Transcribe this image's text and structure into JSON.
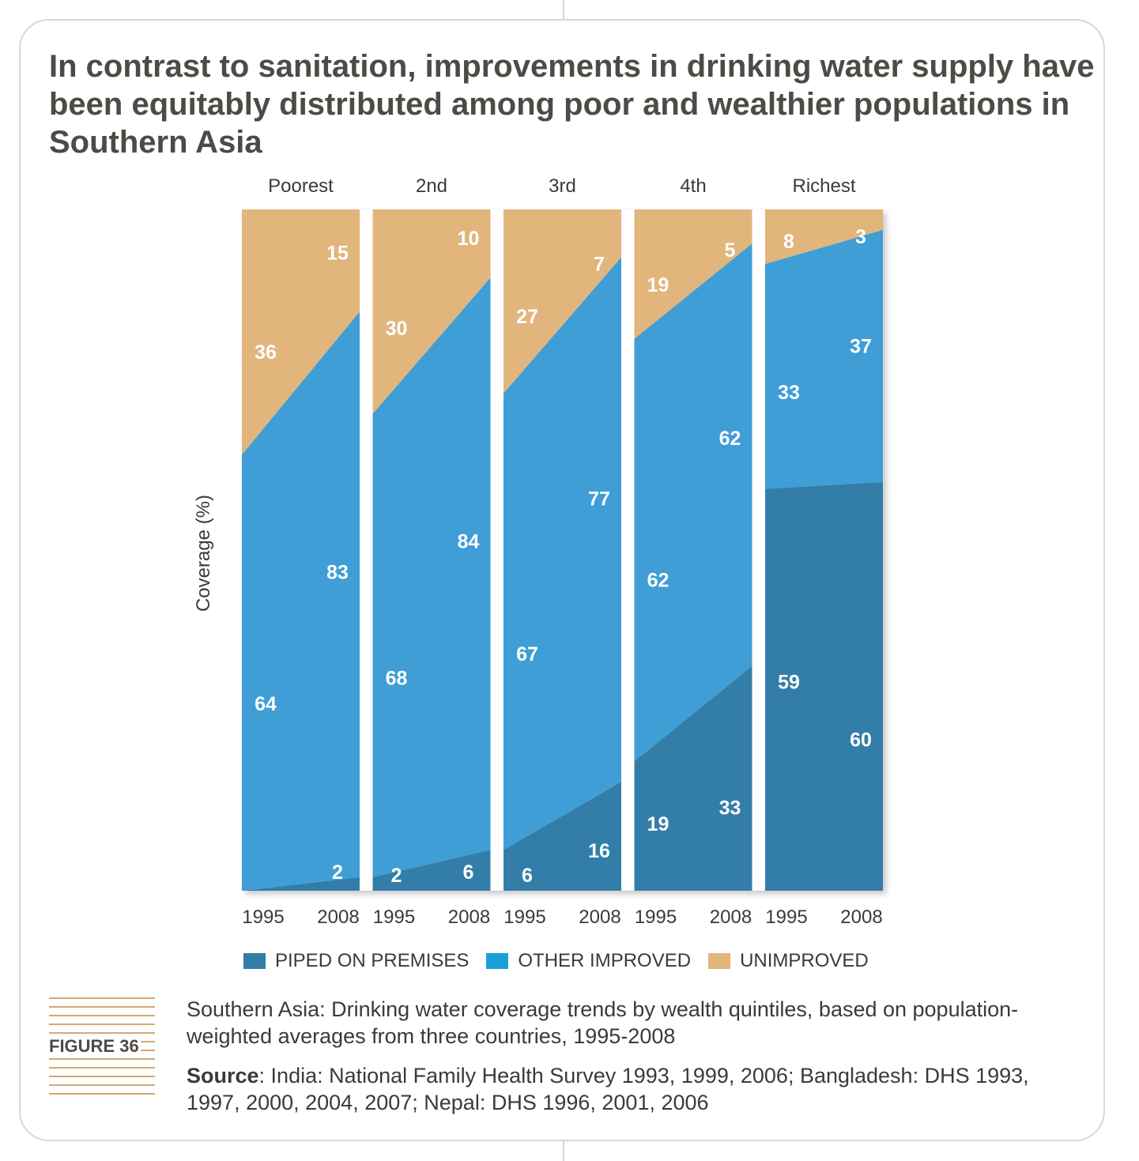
{
  "title": "In contrast to sanitation, improvements in drinking water supply have been equitably distributed among poor and wealthier populations in Southern Asia",
  "figure_label": "FIGURE 36",
  "caption": "Southern Asia: Drinking water coverage trends by wealth quintiles, based on population-weighted averages from three countries, 1995-2008",
  "source_label": "Source",
  "source_text": ": India: National Family Health Survey 1993, 1999, 2006; Bangladesh: DHS 1993, 1997, 2000, 2004, 2007; Nepal: DHS 1996, 2001, 2006",
  "colors": {
    "piped": "#337ea8",
    "other": "#3e9ed5",
    "unimproved": "#e2b57c",
    "legend_other": "#1aa0d8",
    "label_text": "#ffffff",
    "title_text": "#4e4a45"
  },
  "chart_data": {
    "type": "area",
    "ylabel": "Coverage (%)",
    "ylim": [
      0,
      100
    ],
    "x": [
      "1995",
      "2008"
    ],
    "grid": false,
    "legend_position": "bottom",
    "legend": [
      "PIPED ON PREMISES",
      "OTHER IMPROVED",
      "UNIMPROVED"
    ],
    "panels": [
      {
        "name": "Poorest",
        "piped": [
          0,
          2
        ],
        "other": [
          64,
          83
        ],
        "unimproved": [
          36,
          15
        ]
      },
      {
        "name": "2nd",
        "piped": [
          2,
          6
        ],
        "other": [
          68,
          84
        ],
        "unimproved": [
          30,
          10
        ]
      },
      {
        "name": "3rd",
        "piped": [
          6,
          16
        ],
        "other": [
          67,
          77
        ],
        "unimproved": [
          27,
          7
        ]
      },
      {
        "name": "4th",
        "piped": [
          19,
          33
        ],
        "other": [
          62,
          62
        ],
        "unimproved": [
          19,
          5
        ]
      },
      {
        "name": "Richest",
        "piped": [
          59,
          60
        ],
        "other": [
          33,
          37
        ],
        "unimproved": [
          8,
          3
        ]
      }
    ]
  }
}
